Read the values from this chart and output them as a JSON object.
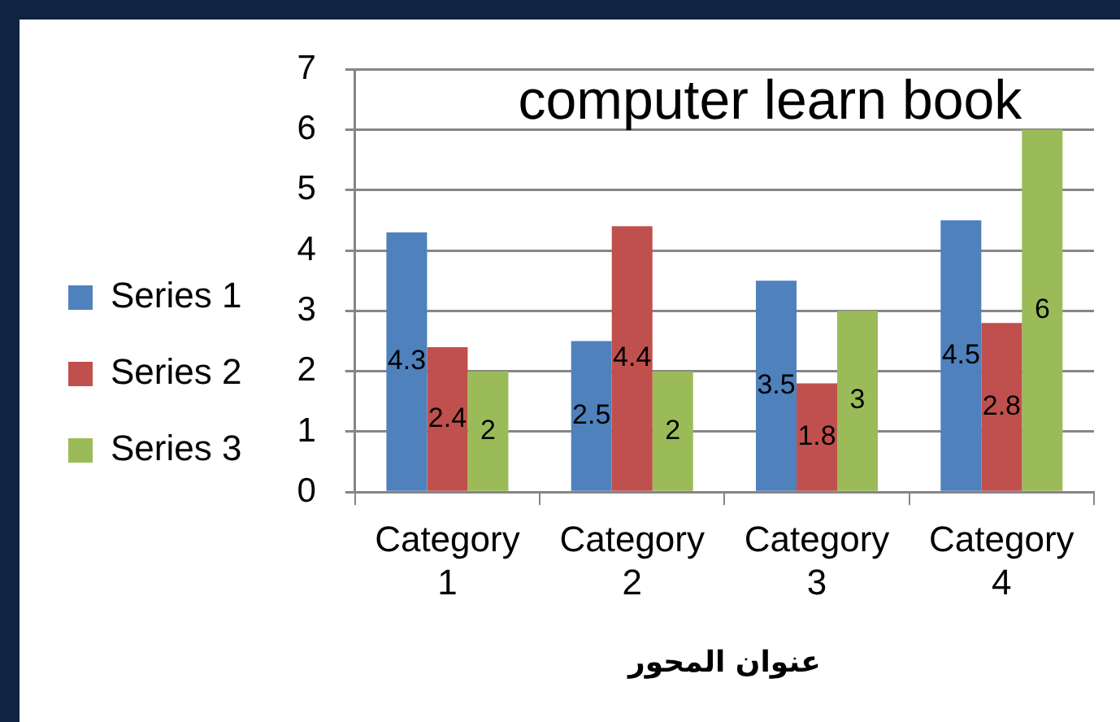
{
  "chart_data": {
    "type": "bar",
    "title": "computer learn book",
    "xlabel": "عنوان المحور",
    "categories": [
      "Category 1",
      "Category 2",
      "Category 3",
      "Category 4"
    ],
    "series": [
      {
        "name": "Series 1",
        "color": "#4f81bd",
        "values": [
          4.3,
          2.5,
          3.5,
          4.5
        ]
      },
      {
        "name": "Series 2",
        "color": "#c0504d",
        "values": [
          2.4,
          4.4,
          1.8,
          2.8
        ]
      },
      {
        "name": "Series 3",
        "color": "#9bbb59",
        "values": [
          2,
          2,
          3,
          6
        ]
      }
    ],
    "ylim": [
      0,
      7
    ],
    "yticks": [
      0,
      1,
      2,
      3,
      4,
      5,
      6,
      7
    ],
    "grid": "y",
    "legend": "left",
    "data_labels": true
  }
}
